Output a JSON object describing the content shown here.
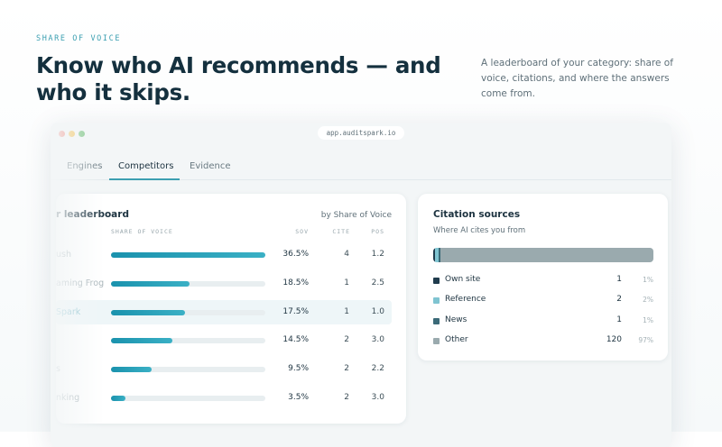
{
  "eyebrow": "SHARE OF VOICE",
  "headline": "Know who AI recommends — and who it skips.",
  "description": "A leaderboard of your category: share of voice, citations, and where the answers come from.",
  "browser": {
    "url": "app.auditspark.io"
  },
  "tabs": [
    "Engines",
    "Competitors",
    "Evidence"
  ],
  "leaderboard": {
    "title": "r leaderboard",
    "sort": "by Share of Voice",
    "columns": [
      "SHARE OF VOICE",
      "SOV",
      "CITE",
      "POS"
    ],
    "rows": [
      {
        "name": "ush",
        "sov": 36.5,
        "sov_label": "36.5%",
        "cite": 4,
        "pos": "1.2"
      },
      {
        "name": "aming Frog",
        "sov": 18.5,
        "sov_label": "18.5%",
        "cite": 1,
        "pos": "2.5"
      },
      {
        "name": "Spark",
        "sov": 17.5,
        "sov_label": "17.5%",
        "cite": 1,
        "pos": "1.0"
      },
      {
        "sov": 14.5,
        "sov_label": "14.5%",
        "cite": 2,
        "pos": "3.0"
      },
      {
        "name": "s",
        "sov": 9.5,
        "sov_label": "9.5%",
        "cite": 2,
        "pos": "2.2"
      },
      {
        "name": "nking",
        "sov": 3.5,
        "sov_label": "3.5%",
        "cite": 2,
        "pos": "3.0"
      }
    ]
  },
  "citations": {
    "title": "Citation sources",
    "subtitle": "Where AI cites you from",
    "sources": [
      {
        "name": "Own site",
        "color": "#1f3b4d",
        "count": 1,
        "share_label": "1%"
      },
      {
        "name": "Reference",
        "color": "#7fc4d1",
        "count": 2,
        "share_label": "2%"
      },
      {
        "name": "News",
        "color": "#3b6a78",
        "count": 1,
        "share_label": "1%"
      },
      {
        "name": "Other",
        "color": "#9aaaae",
        "count": 120,
        "share_label": "97%"
      }
    ]
  }
}
